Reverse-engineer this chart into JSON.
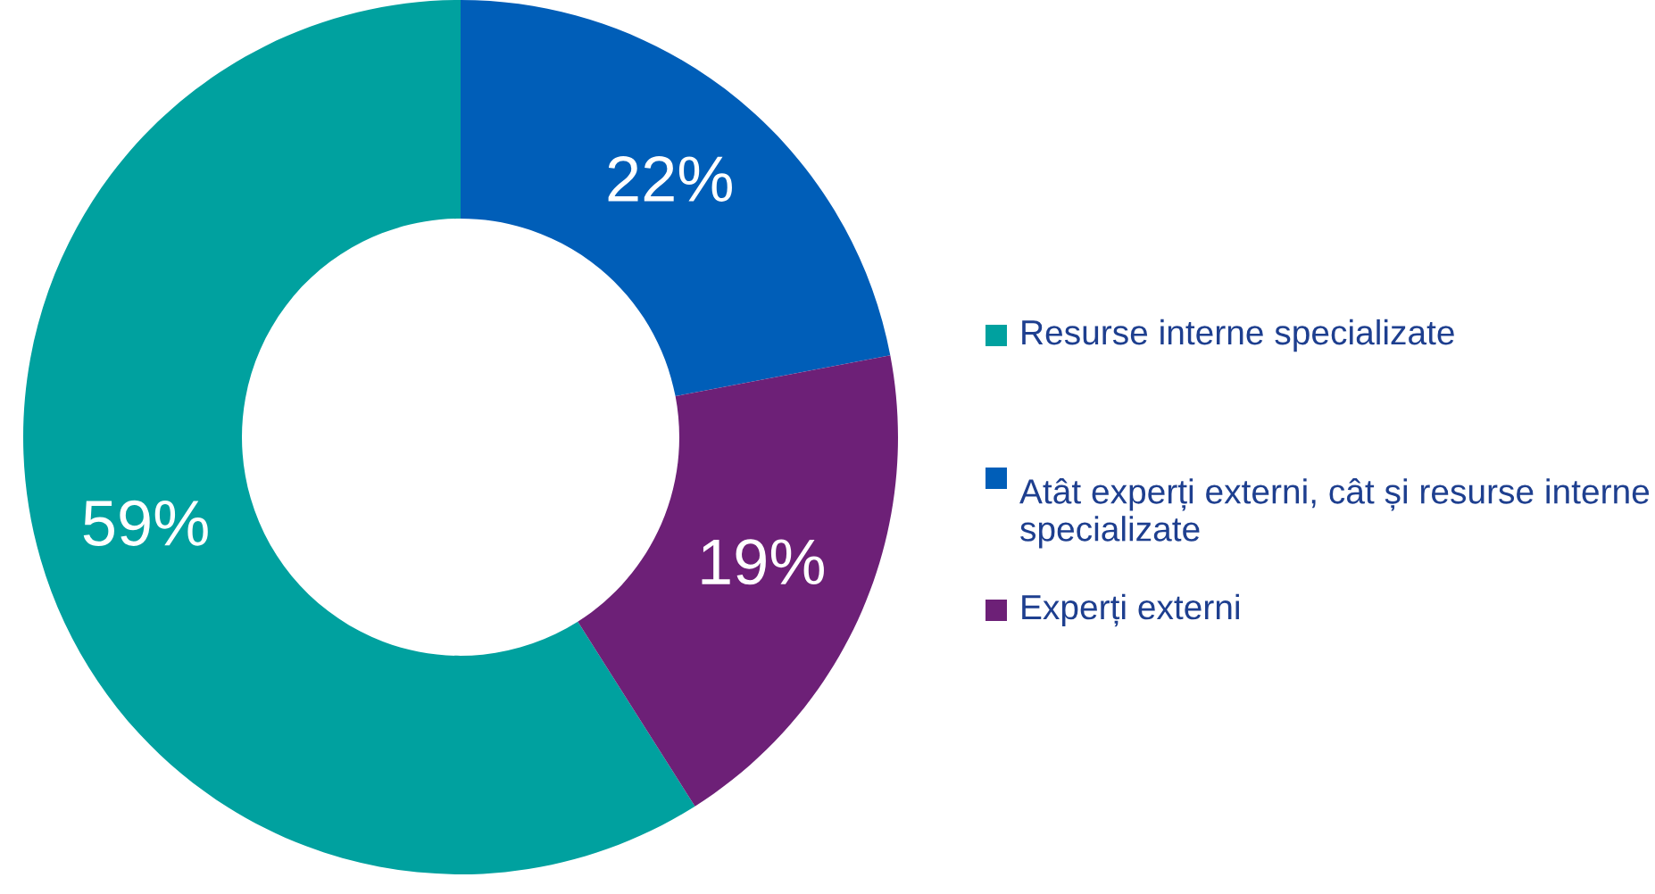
{
  "chart_data": {
    "type": "donut",
    "categories": [
      "Resurse interne specializate",
      "Atât experți externi, cât și resurse interne specializate",
      "Experți externi"
    ],
    "values": [
      59,
      22,
      19
    ],
    "colors": [
      "#00a19f",
      "#005eb8",
      "#6d2077"
    ],
    "value_labels": [
      "59%",
      "22%",
      "19%"
    ],
    "legend": "right"
  }
}
